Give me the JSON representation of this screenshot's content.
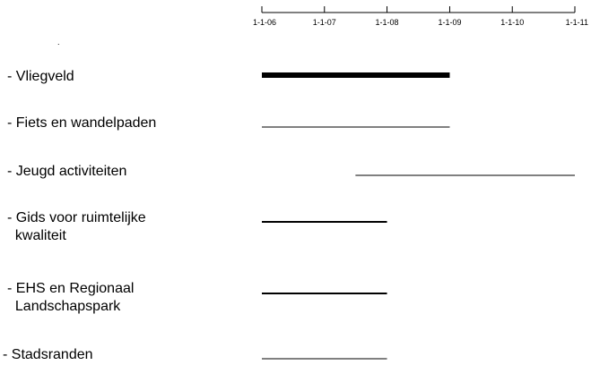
{
  "chart_data": {
    "type": "gantt",
    "axis": {
      "ticks": [
        "1-1-06",
        "1-1-07",
        "1-1-08",
        "1-1-09",
        "1-1-10",
        "1-1-11"
      ],
      "range": [
        "2006-01-01",
        "2011-01-01"
      ]
    },
    "tasks": [
      {
        "label_lines": [
          "- Vliegveld"
        ],
        "start": "2006-01-01",
        "end": "2009-01-01",
        "emphasis": "bold"
      },
      {
        "label_lines": [
          "- Fiets en wandelpaden"
        ],
        "start": "2006-01-01",
        "end": "2009-01-01",
        "emphasis": "thin"
      },
      {
        "label_lines": [
          "- Jeugd activiteiten"
        ],
        "start": "2007-07-01",
        "end": "2011-01-01",
        "emphasis": "thin"
      },
      {
        "label_lines": [
          "- Gids voor ruimtelijke",
          "  kwaliteit"
        ],
        "start": "2006-01-01",
        "end": "2008-01-01",
        "emphasis": "medium"
      },
      {
        "label_lines": [
          "- EHS en Regionaal",
          "  Landschapspark"
        ],
        "start": "2006-01-01",
        "end": "2008-01-01",
        "emphasis": "medium"
      },
      {
        "label_lines": [
          "- Stadsranden"
        ],
        "start": "2006-01-01",
        "end": "2008-01-01",
        "emphasis": "thin"
      }
    ],
    "line_color": "#000000",
    "grid": false,
    "legend": "none"
  }
}
